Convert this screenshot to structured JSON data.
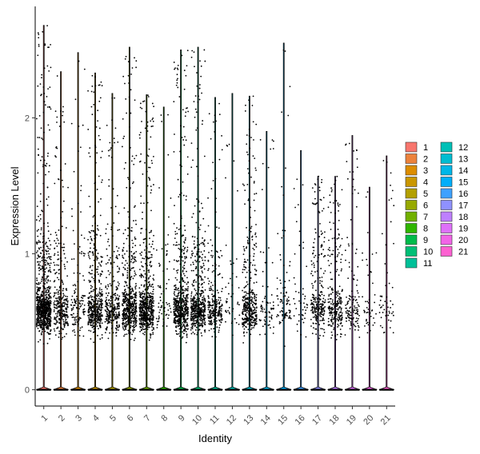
{
  "chart_data": {
    "type": "violin",
    "xlabel": "Identity",
    "ylabel": "Expression Level",
    "categories": [
      "1",
      "2",
      "3",
      "4",
      "5",
      "6",
      "7",
      "8",
      "9",
      "10",
      "11",
      "12",
      "13",
      "14",
      "15",
      "16",
      "17",
      "18",
      "19",
      "20",
      "21"
    ],
    "ylim": [
      -0.12,
      2.82
    ],
    "yticks": [
      0,
      1,
      2
    ],
    "max_values": [
      2.68,
      2.34,
      2.48,
      2.33,
      2.18,
      2.52,
      2.17,
      2.08,
      2.5,
      2.52,
      2.15,
      2.18,
      2.16,
      1.9,
      2.55,
      1.76,
      1.57,
      1.57,
      1.87,
      1.49,
      1.72
    ],
    "expressing_cell_density": [
      1.0,
      0.35,
      0.15,
      0.55,
      0.35,
      0.6,
      0.7,
      0.08,
      0.65,
      0.6,
      0.3,
      0.05,
      0.45,
      0.08,
      0.1,
      0.05,
      0.3,
      0.3,
      0.15,
      0.05,
      0.06
    ],
    "grid": false,
    "legend_position": "right",
    "legend": {
      "labels": [
        "1",
        "2",
        "3",
        "4",
        "5",
        "6",
        "7",
        "8",
        "9",
        "10",
        "11",
        "12",
        "13",
        "14",
        "15",
        "16",
        "17",
        "18",
        "19",
        "20",
        "21"
      ],
      "colors": [
        "#F8766D",
        "#EC823C",
        "#DD8D00",
        "#CA9700",
        "#B3A000",
        "#97A900",
        "#71B000",
        "#2FB600",
        "#00BB4B",
        "#00BF76",
        "#00C098",
        "#00C0B7",
        "#00BDD1",
        "#00B7E8",
        "#00AEFA",
        "#3DA1FF",
        "#8F91FF",
        "#BE80FF",
        "#DE71F9",
        "#F265E7",
        "#FD61D1"
      ]
    }
  }
}
